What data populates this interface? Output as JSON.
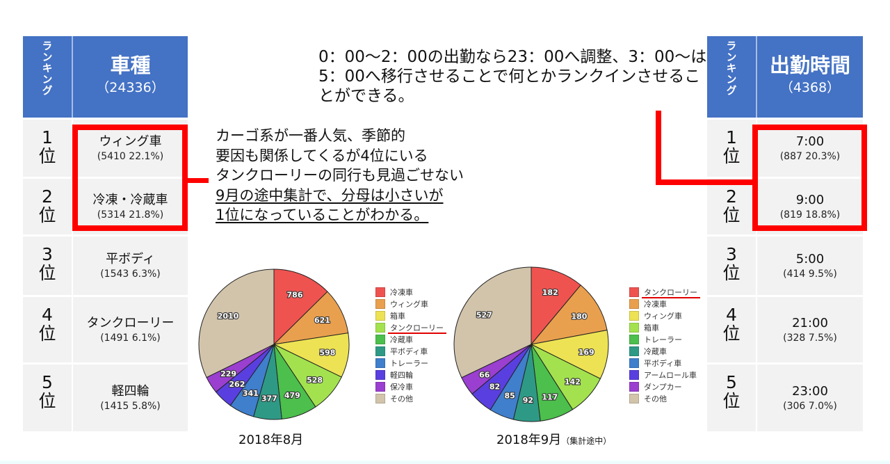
{
  "left_table": {
    "rank_header": "ランキング",
    "title": "車種",
    "total": "（24336）",
    "rows": [
      {
        "rank": "1",
        "suffix": "位",
        "name": "ウィング車",
        "detail": "(5410 22.1%)"
      },
      {
        "rank": "2",
        "suffix": "位",
        "name": "冷凍・冷蔵車",
        "detail": "(5314 21.8%)"
      },
      {
        "rank": "3",
        "suffix": "位",
        "name": "平ボディ",
        "detail": "(1543 6.3%)"
      },
      {
        "rank": "4",
        "suffix": "位",
        "name": "タンクローリー",
        "detail": "(1491 6.1%)"
      },
      {
        "rank": "5",
        "suffix": "位",
        "name": "軽四輪",
        "detail": "(1415 5.8%)"
      }
    ]
  },
  "right_table": {
    "rank_header": "ランキング",
    "title": "出勤時間",
    "total": "（4368）",
    "rows": [
      {
        "rank": "1",
        "suffix": "位",
        "name": "7:00",
        "detail": "(887 20.3%)"
      },
      {
        "rank": "2",
        "suffix": "位",
        "name": "9:00",
        "detail": "(819 18.8%)"
      },
      {
        "rank": "3",
        "suffix": "位",
        "name": "5:00",
        "detail": "(414 9.5%)"
      },
      {
        "rank": "4",
        "suffix": "位",
        "name": "21:00",
        "detail": "(328 7.5%)"
      },
      {
        "rank": "5",
        "suffix": "位",
        "name": "23:00",
        "detail": "(306 7.0%)"
      }
    ]
  },
  "notes": {
    "top": "0：00〜2：00の出勤なら23：00へ調整、3：00〜は5：00へ移行させることで何とかランクインさせることができる。",
    "mid_lines": [
      "カーゴ系が一番人気、季節的",
      "要因も関係してくるが4位にいる",
      "タンクローリーの同行も見過ごせない"
    ],
    "mid_underlined": [
      "9月の途中集計で、分母は小さいが",
      "1位になっていることがわかる。"
    ]
  },
  "colors": {
    "header_blue": "#4472c4",
    "cell_gray": "#f2f2f2",
    "highlight_red": "#ff0000",
    "slices": [
      "#ef5350",
      "#e9a04e",
      "#ede253",
      "#a3e24e",
      "#4cbf4c",
      "#2e9a86",
      "#3f7fcc",
      "#5a3fe0",
      "#9a3fd0",
      "#d2c4ab"
    ]
  },
  "chart_data": [
    {
      "type": "pie",
      "title": "2018年8月",
      "subtitle": "",
      "categories": [
        "冷凍車",
        "ウィング車",
        "箱車",
        "タンクローリー",
        "冷蔵車",
        "平ボディ車",
        "トレーラー",
        "軽四輪",
        "保冷車",
        "その他"
      ],
      "values": [
        786,
        621,
        598,
        528,
        479,
        377,
        341,
        262,
        229,
        2010
      ],
      "highlighted_legend_index": 3,
      "legend_position": "right"
    },
    {
      "type": "pie",
      "title": "2018年9月",
      "subtitle": "（集計途中）",
      "categories": [
        "タンクローリー",
        "冷凍車",
        "ウィング車",
        "箱車",
        "トレーラー",
        "冷蔵車",
        "平ボディ車",
        "アームロール車",
        "ダンプカー",
        "その他"
      ],
      "values": [
        182,
        180,
        169,
        142,
        117,
        92,
        85,
        82,
        66,
        527
      ],
      "highlighted_legend_index": 0,
      "legend_position": "right"
    }
  ]
}
